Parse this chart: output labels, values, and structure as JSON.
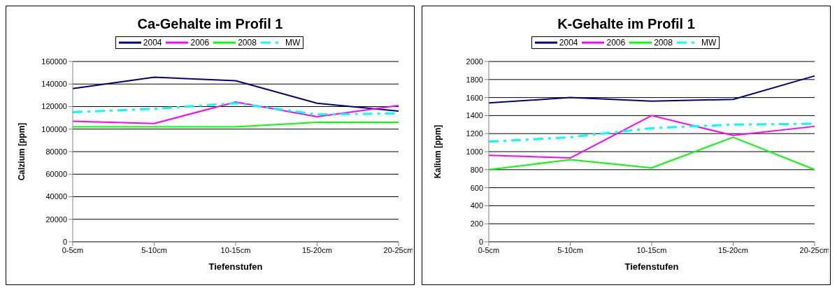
{
  "chart_data": [
    {
      "type": "line",
      "title": "Ca-Gehalte im Profil 1",
      "xlabel": "Tiefenstufen",
      "ylabel": "Calzium [ppm]",
      "categories": [
        "0-5cm",
        "5-10cm",
        "10-15cm",
        "15-20cm",
        "20-25cm"
      ],
      "series": [
        {
          "name": "2004",
          "color": "#000080",
          "values": [
            136000,
            146000,
            143000,
            123000,
            116000
          ]
        },
        {
          "name": "2006",
          "color": "#ff00ff",
          "values": [
            107000,
            105000,
            124000,
            111000,
            121000
          ]
        },
        {
          "name": "2008",
          "color": "#00ff00",
          "values": [
            102000,
            102000,
            102000,
            106000,
            106000
          ]
        },
        {
          "name": "MW",
          "color": "#00ffff",
          "line_style": "dashdot",
          "values": [
            115000,
            118000,
            123000,
            113000,
            114000
          ]
        }
      ],
      "ylim": [
        0,
        160000
      ],
      "yticks": [
        0,
        20000,
        40000,
        60000,
        80000,
        100000,
        120000,
        140000,
        160000
      ],
      "grid": "y",
      "legend": "top",
      "marker": "none",
      "line_style": "solid"
    },
    {
      "type": "line",
      "title": "K-Gehalte im Profil 1",
      "xlabel": "Tiefenstufen",
      "ylabel": "Kalium  [ppm]",
      "categories": [
        "0-5cm",
        "5-10cm",
        "10-15cm",
        "15-20cm",
        "20-25cm"
      ],
      "series": [
        {
          "name": "2004",
          "color": "#000080",
          "values": [
            1540,
            1600,
            1560,
            1580,
            1840
          ]
        },
        {
          "name": "2006",
          "color": "#ff00ff",
          "values": [
            960,
            930,
            1400,
            1180,
            1280
          ]
        },
        {
          "name": "2008",
          "color": "#00ff00",
          "values": [
            800,
            910,
            820,
            1160,
            800
          ]
        },
        {
          "name": "MW",
          "color": "#00ffff",
          "line_style": "dashdot",
          "values": [
            1110,
            1160,
            1260,
            1300,
            1310
          ]
        }
      ],
      "ylim": [
        0,
        2000
      ],
      "yticks": [
        0,
        200,
        400,
        600,
        800,
        1000,
        1200,
        1400,
        1600,
        1800,
        2000
      ],
      "grid": "y",
      "legend": "top",
      "marker": "none",
      "line_style": "solid"
    }
  ]
}
